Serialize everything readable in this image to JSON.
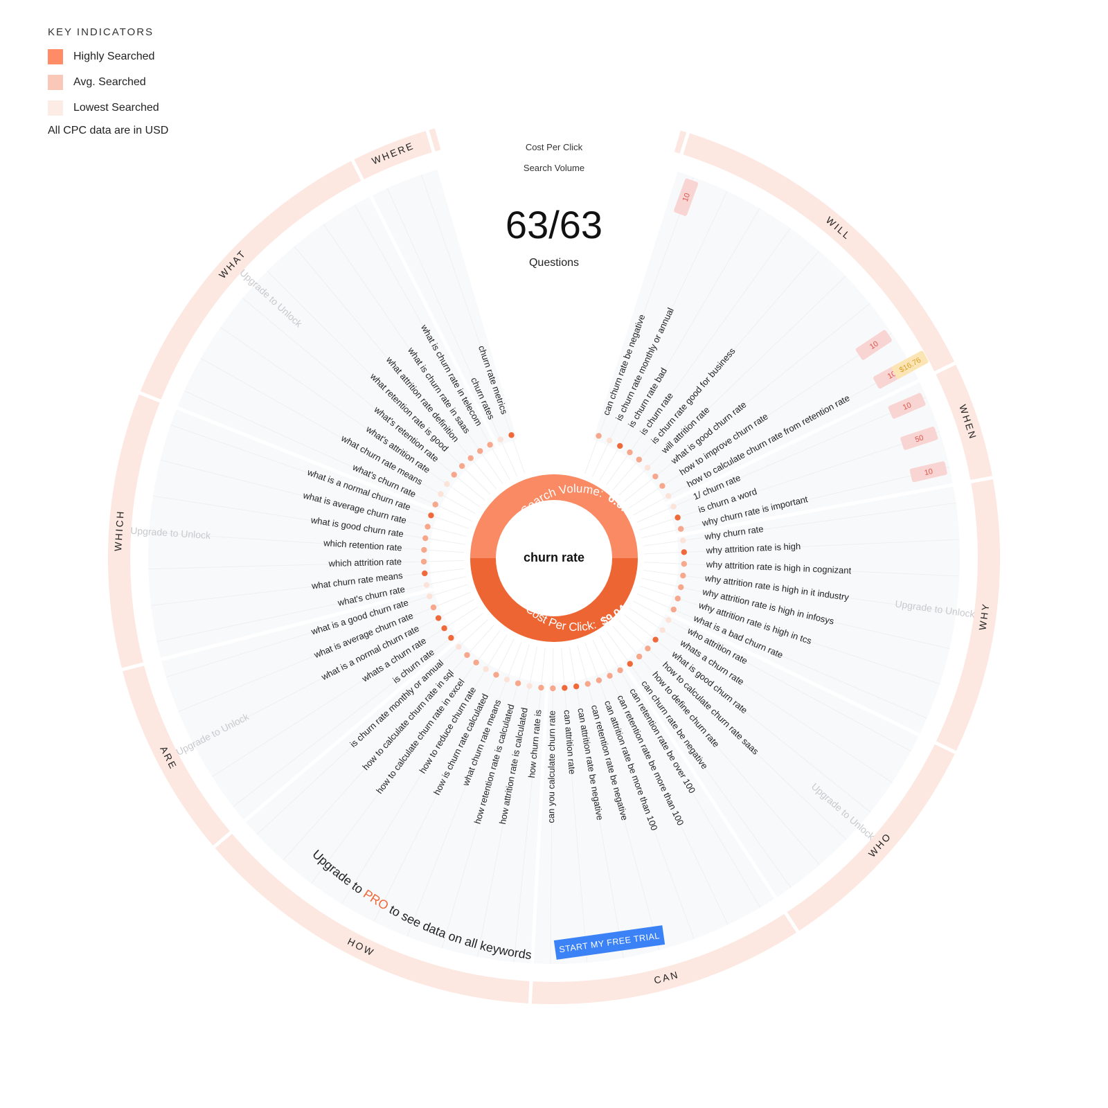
{
  "legend": {
    "title": "KEY INDICATORS",
    "items": [
      {
        "label": "Highly Searched",
        "color": "#FF8C66"
      },
      {
        "label": "Avg. Searched",
        "color": "#F9C8B8"
      },
      {
        "label": "Lowest Searched",
        "color": "#FDECE6"
      }
    ],
    "note": "All CPC data are in USD"
  },
  "header": {
    "cpc_label": "Cost Per Click",
    "volume_label": "Search Volume",
    "count": "63/63",
    "count_label": "Questions"
  },
  "center": {
    "keyword": "churn rate",
    "search_volume_label": "Search Volume:",
    "search_volume_value": "6.6K",
    "cpc_label": "Cost Per Click:",
    "cpc_value": "$9.04"
  },
  "colors": {
    "high": "#F0693A",
    "avg": "#F7A78B",
    "low": "#FCE3DA",
    "ring": "#FDE8E1",
    "badge_bg": "#F8D5D2",
    "badge_text": "#E0544B",
    "cpc_bg": "#FCE5B5",
    "cpc_text": "#D9A02A",
    "button": "#3B82F6"
  },
  "lock_label": "Upgrade to Unlock",
  "sections": [
    {
      "name": "WILL",
      "questions": [
        {
          "text": "can churn rate be negative",
          "volume": "10"
        },
        {
          "text": "is churn rate monthly or annual"
        },
        {
          "text": "is churn rate bad"
        },
        {
          "text": "is churn rate"
        },
        {
          "text": "is churn rate good for business"
        },
        {
          "text": "will attrition rate"
        },
        {
          "text": "what is good churn rate"
        },
        {
          "text": "how to improve churn rate",
          "volume": "10"
        },
        {
          "text": "how to calculate churn rate from retention rate",
          "volume": "10",
          "cpc": "$16.76"
        }
      ]
    },
    {
      "name": "WHEN",
      "questions": [
        {
          "text": "1/ churn rate",
          "volume": "10"
        },
        {
          "text": "is churn a word",
          "volume": "50"
        },
        {
          "text": "why churn rate is important",
          "volume": "10"
        }
      ]
    },
    {
      "name": "WHY",
      "questions": [
        {
          "text": "why churn rate"
        },
        {
          "text": "why attrition rate is high"
        },
        {
          "text": "why attrition rate is high in cognizant"
        },
        {
          "text": "why attrition rate is high in it industry"
        },
        {
          "text": "why attrition rate is high in infosys"
        },
        {
          "text": "why attrition rate is high in tcs"
        },
        {
          "text": "what is a bad churn rate"
        }
      ]
    },
    {
      "name": "WHO",
      "questions": [
        {
          "text": "who attrition rate"
        },
        {
          "text": "whats a churn rate"
        },
        {
          "text": "what is good churn rate"
        },
        {
          "text": "how to calculate churn rate saas"
        },
        {
          "text": "how to define churn rate"
        },
        {
          "text": "can churn rate be negative"
        }
      ]
    },
    {
      "name": "CAN",
      "questions": [
        {
          "text": "can retention rate be over 100"
        },
        {
          "text": "can retention rate be more than 100"
        },
        {
          "text": "can attrition rate be more than 100"
        },
        {
          "text": "can retention rate be negative"
        },
        {
          "text": "can attrition rate be negative"
        },
        {
          "text": "can attrition rate"
        },
        {
          "text": "can you calculate churn rate"
        }
      ]
    },
    {
      "name": "HOW",
      "questions": [
        {
          "text": "how churn rate is"
        },
        {
          "text": "how attrition rate is calculated"
        },
        {
          "text": "how retention rate is calculated"
        },
        {
          "text": "what churn rate means"
        },
        {
          "text": "how is churn rate calculated"
        },
        {
          "text": "how to reduce churn rate"
        },
        {
          "text": "how to calculate churn rate in excel"
        },
        {
          "text": "how to calculate churn rate in sql"
        },
        {
          "text": "is churn rate monthly or annual"
        }
      ]
    },
    {
      "name": "ARE",
      "questions": [
        {
          "text": "is churn rate"
        },
        {
          "text": "whats a churn rate"
        },
        {
          "text": "what is a normal churn rate"
        },
        {
          "text": "what is average churn rate"
        },
        {
          "text": "what is a good churn rate"
        }
      ]
    },
    {
      "name": "WHICH",
      "questions": [
        {
          "text": "what's churn rate"
        },
        {
          "text": "what churn rate means"
        },
        {
          "text": "which attrition rate"
        },
        {
          "text": "which retention rate"
        },
        {
          "text": "what is good churn rate"
        },
        {
          "text": "what is average churn rate"
        },
        {
          "text": "what is a normal churn rate"
        }
      ]
    },
    {
      "name": "WHAT",
      "questions": [
        {
          "text": "what's churn rate"
        },
        {
          "text": "what churn rate means"
        },
        {
          "text": "what's attrition rate"
        },
        {
          "text": "what's retention rate"
        },
        {
          "text": "what retention rate is good"
        },
        {
          "text": "what attrition rate definition"
        },
        {
          "text": "what is churn rate in saas"
        },
        {
          "text": "what is churn rate in telecom"
        }
      ]
    },
    {
      "name": "WHERE",
      "questions": [
        {
          "text": "churn rates"
        },
        {
          "text": "churn rate metrics"
        }
      ]
    }
  ],
  "dot_levels": [
    "avg",
    "low",
    "high",
    "avg",
    "avg",
    "low",
    "avg",
    "avg",
    "low",
    "low",
    "high",
    "avg",
    "low",
    "high",
    "avg",
    "avg",
    "avg",
    "avg",
    "avg",
    "low",
    "low",
    "high",
    "avg",
    "avg",
    "high",
    "avg",
    "avg",
    "avg",
    "avg",
    "high",
    "high",
    "avg",
    "avg",
    "low",
    "avg",
    "low",
    "avg",
    "low",
    "avg",
    "avg",
    "low",
    "high",
    "high",
    "high",
    "avg",
    "low",
    "low",
    "high",
    "avg",
    "avg",
    "avg",
    "avg",
    "high",
    "avg",
    "low",
    "low",
    "avg",
    "avg",
    "avg",
    "avg",
    "avg",
    "low",
    "high"
  ],
  "upgrade": {
    "prefix": "Upgrade to ",
    "pro": "PRO",
    "suffix": " to see data on all keywords",
    "button": "START MY FREE TRIAL"
  }
}
